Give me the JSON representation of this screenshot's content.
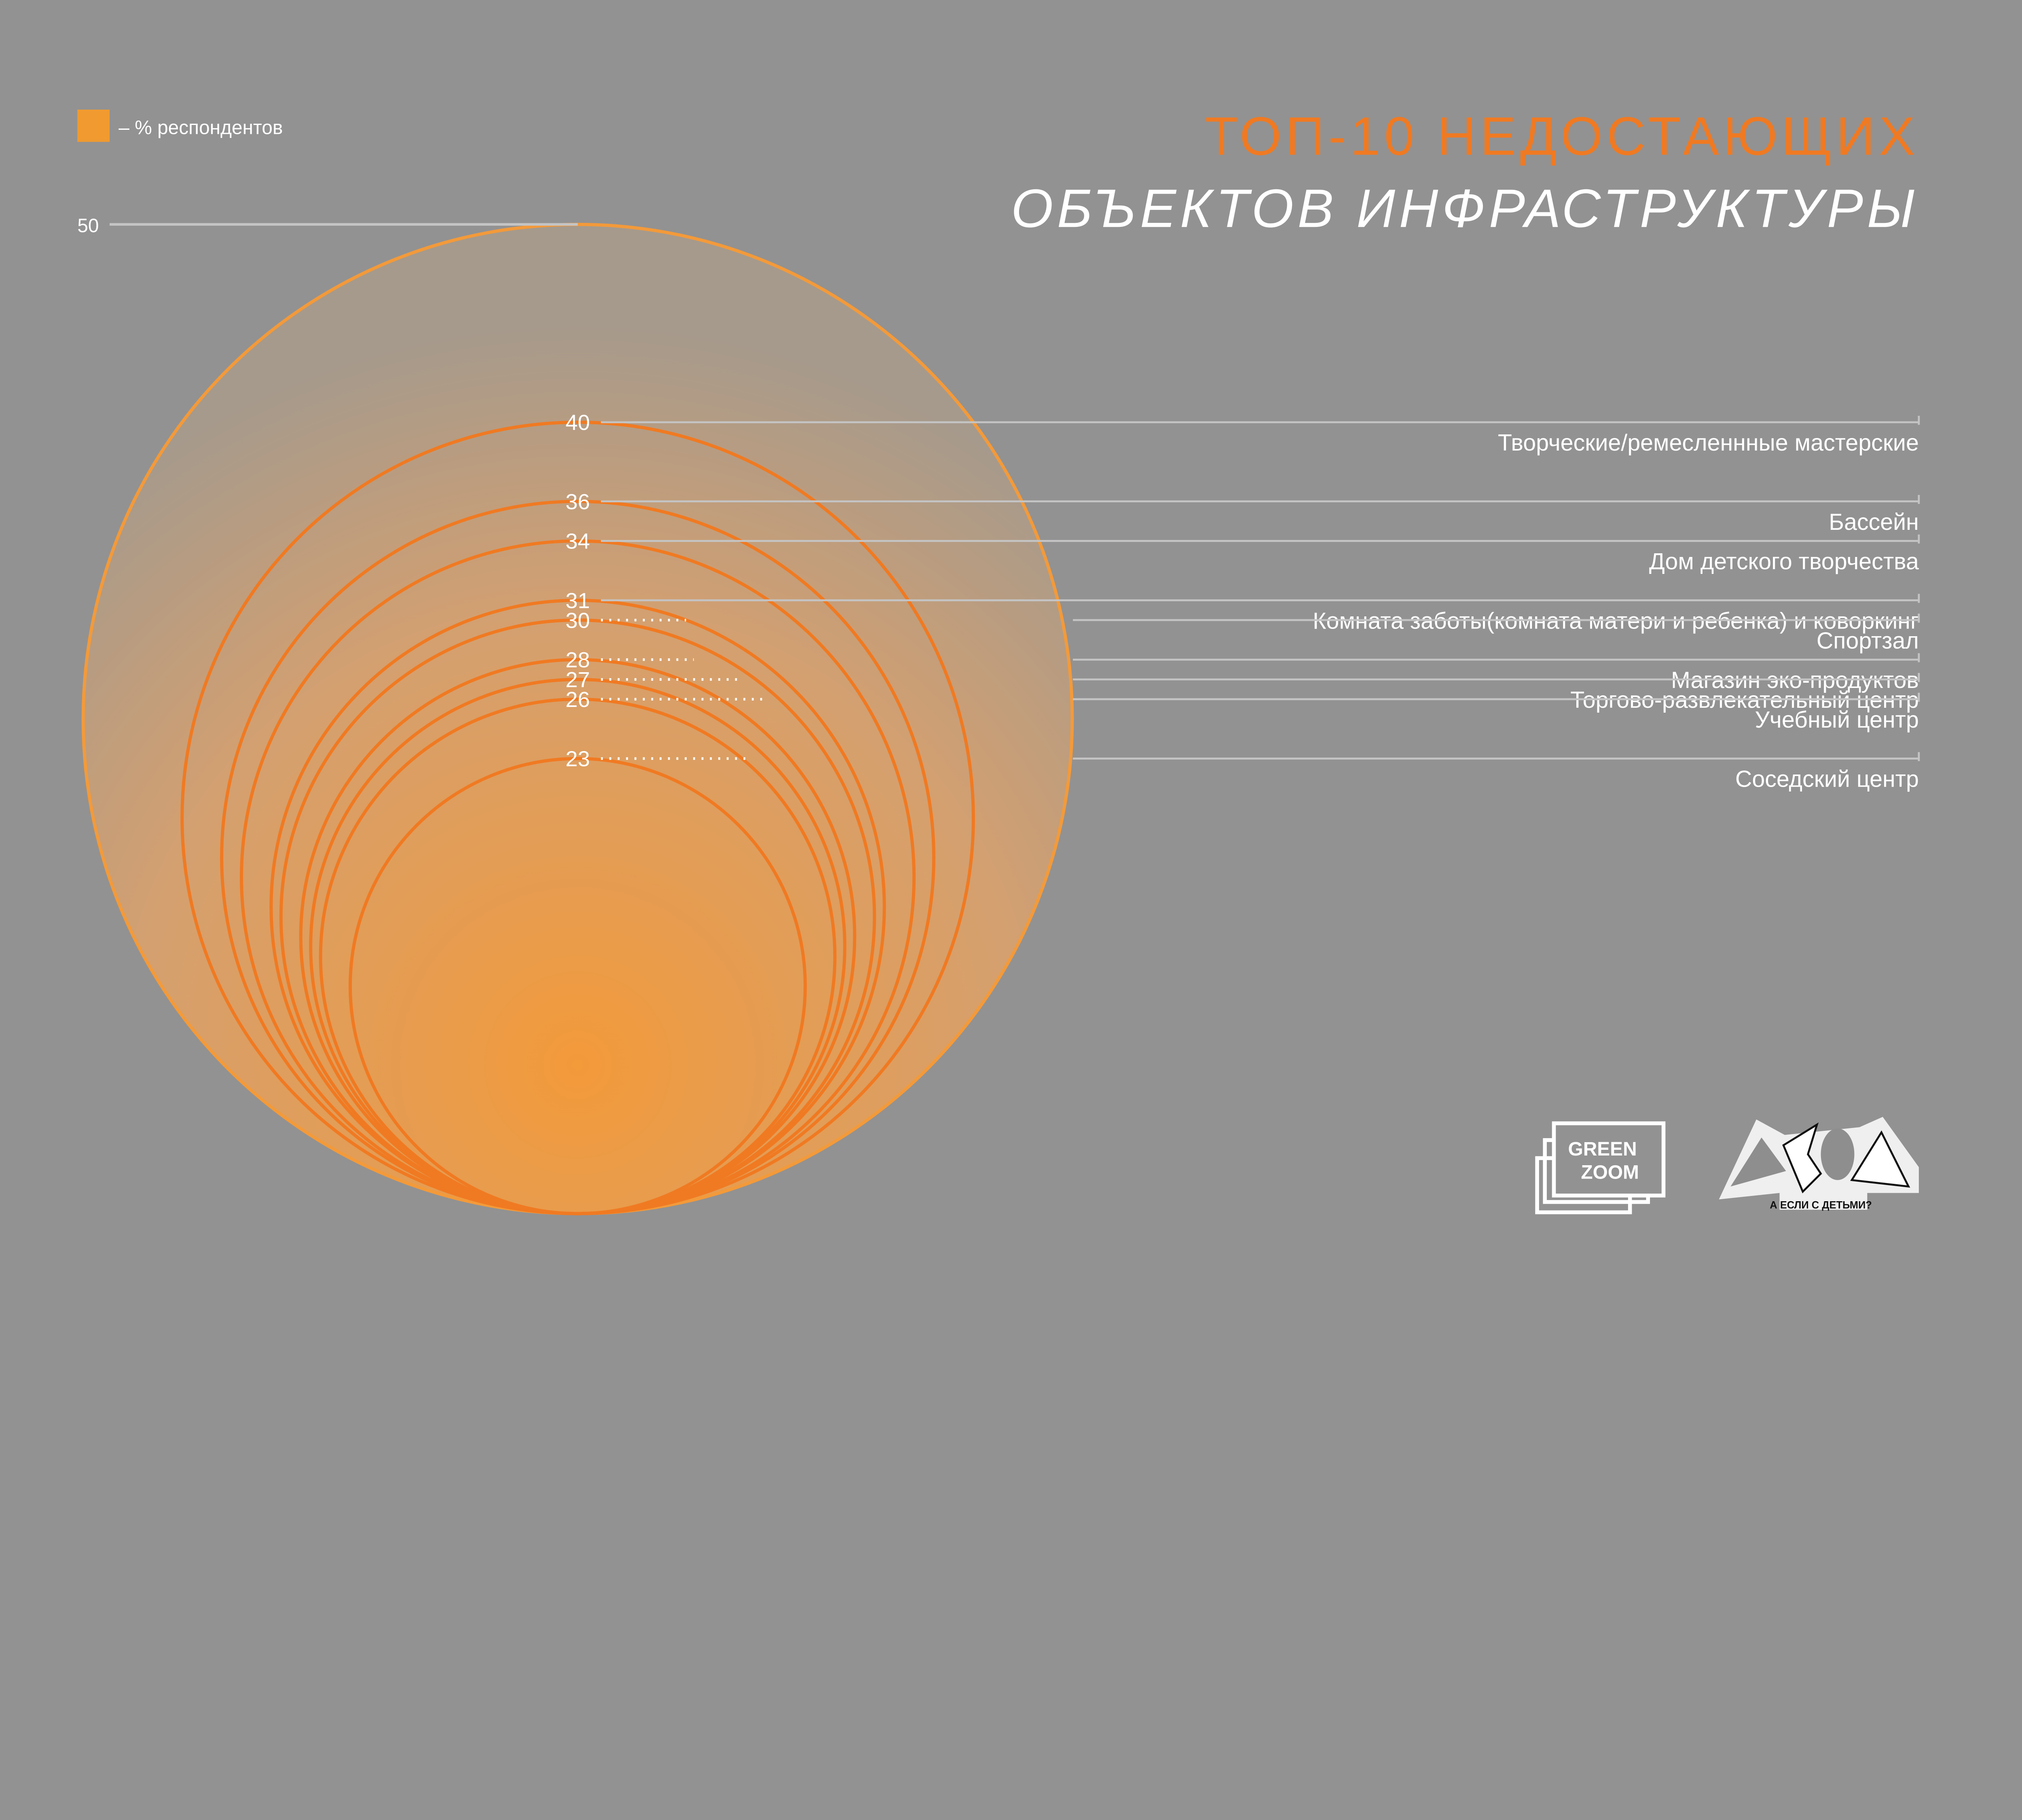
{
  "legend": {
    "label": "– % респондентов",
    "color": "#f09a30"
  },
  "title": {
    "line1": "ТОП-10 НЕДОСТАЮЩИХ",
    "line2": "ОБЪЕКТОВ ИНФРАСТРУКТУРЫ"
  },
  "colors": {
    "accent": "#f07a22",
    "background": "#929292",
    "line": "#c4c4c4"
  },
  "logos": {
    "green_zoom": "GREEN ZOOM",
    "a_esli": "А ЕСЛИ С ДЕТЬМИ?"
  },
  "chart_data": {
    "type": "nested-circles",
    "title": "ТОП-10 НЕДОСТАЮЩИХ ОБЪЕКТОВ ИНФРАСТРУКТУРЫ",
    "unit": "% респондентов",
    "scale_max": 50,
    "scale_label": "50",
    "items": [
      {
        "label": "Творческие/ремесленнные мастерские",
        "value": 40
      },
      {
        "label": "Бассейн",
        "value": 36
      },
      {
        "label": "Дом детского творчества",
        "value": 34
      },
      {
        "label": "Комната заботы(комната матери и ребенка) и коворкинг",
        "value": 31
      },
      {
        "label": "Спортзал",
        "value": 30
      },
      {
        "label": "Магазин эко-продуктов",
        "value": 28
      },
      {
        "label": "Торгово-развлекательный центр",
        "value": 27
      },
      {
        "label": "Учебный центр",
        "value": 26
      },
      {
        "label": "Соседский центр",
        "value": 23
      }
    ]
  }
}
